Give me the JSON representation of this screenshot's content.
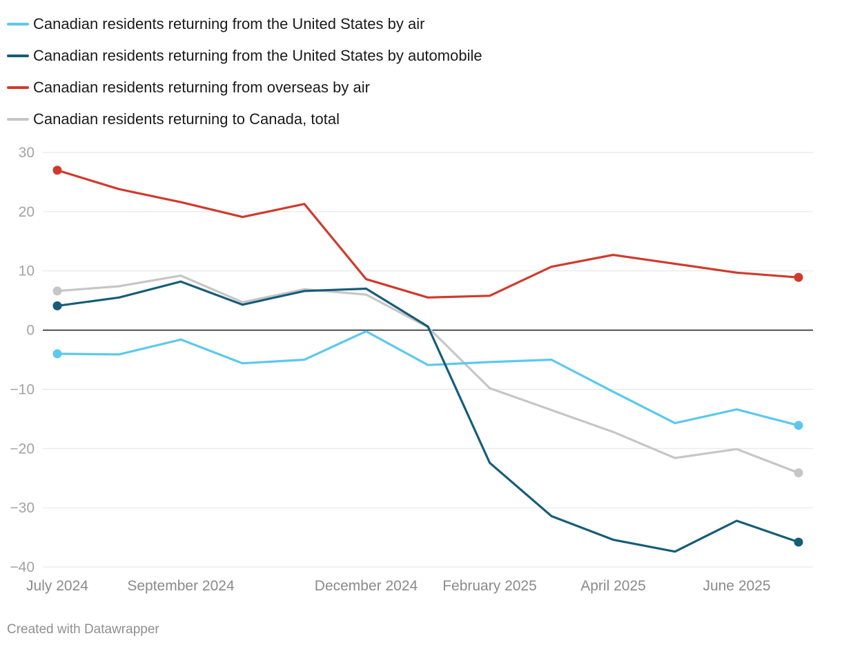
{
  "footer": "Created with Datawrapper",
  "chart_data": {
    "type": "line",
    "title": "",
    "xlabel": "",
    "ylabel": "",
    "ylim": [
      -40,
      30
    ],
    "yticks": [
      30,
      20,
      10,
      0,
      -10,
      -20,
      -30,
      -40
    ],
    "ytick_labels": [
      "30",
      "20",
      "10",
      "0",
      "−10",
      "−20",
      "−30",
      "−40"
    ],
    "categories": [
      "Jul 2024",
      "Aug 2024",
      "Sep 2024",
      "Oct 2024",
      "Nov 2024",
      "Dec 2024",
      "Jan 2025",
      "Feb 2025",
      "Mar 2025",
      "Apr 2025",
      "May 2025",
      "Jun 2025",
      "Jul 2025"
    ],
    "xtick_labels": [
      {
        "index": 0,
        "label": "July 2024"
      },
      {
        "index": 2,
        "label": "September 2024"
      },
      {
        "index": 5,
        "label": "December 2024"
      },
      {
        "index": 7,
        "label": "February 2025"
      },
      {
        "index": 9,
        "label": "April 2025"
      },
      {
        "index": 11,
        "label": "June 2025"
      }
    ],
    "legend_position": "top-left",
    "series": [
      {
        "name": "Canadian residents returning from the United States by air",
        "color": "#5bc8f0",
        "values": [
          -4.0,
          -4.1,
          -1.6,
          -5.6,
          -5.0,
          -0.2,
          -5.9,
          -5.4,
          -5.0,
          -10.4,
          -15.7,
          -13.4,
          -16.1
        ]
      },
      {
        "name": "Canadian residents returning from the United States by automobile",
        "color": "#165d78",
        "values": [
          4.1,
          5.5,
          8.2,
          4.3,
          6.6,
          7.0,
          0.6,
          -22.4,
          -31.4,
          -35.4,
          -37.4,
          -32.2,
          -35.8
        ]
      },
      {
        "name": "Canadian residents returning from overseas by air",
        "color": "#d03a2d",
        "values": [
          27.0,
          23.8,
          21.6,
          19.1,
          21.3,
          8.6,
          5.5,
          5.8,
          10.7,
          12.7,
          11.2,
          9.7,
          8.9
        ]
      },
      {
        "name": "Canadian residents returning to Canada, total",
        "color": "#c6c6c6",
        "values": [
          6.6,
          7.4,
          9.2,
          4.7,
          6.9,
          6.0,
          0.5,
          -9.8,
          -13.5,
          -17.2,
          -21.6,
          -20.1,
          -24.1
        ]
      }
    ]
  }
}
